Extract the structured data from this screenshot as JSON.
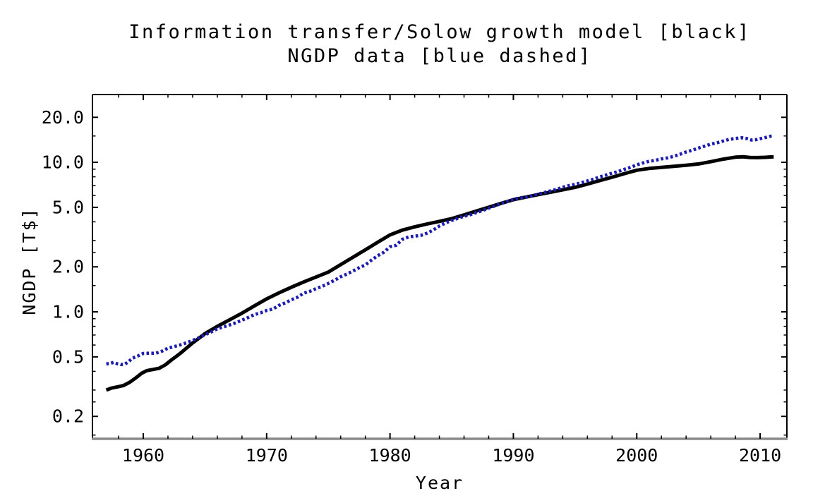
{
  "title": {
    "line1": "Information transfer/Solow growth model [black]",
    "line2": "NGDP data [blue dashed]"
  },
  "chart_data": {
    "type": "line",
    "title": "Information transfer/Solow growth model [black] / NGDP data [blue dashed]",
    "xlabel": "Year",
    "ylabel": "NGDP [T$]",
    "grid": false,
    "legend": "none (described in title)",
    "x_axis": {
      "min": 1955.88,
      "max": 2012.17,
      "major_ticks": [
        1960,
        1970,
        1980,
        1990,
        2000,
        2010
      ],
      "major_tick_labels": [
        "1960",
        "1970",
        "1980",
        "1990",
        "2000",
        "2010"
      ],
      "minor_tick_step_years": 2
    },
    "y_axis": {
      "scale": "log",
      "min": 0.1416,
      "max": 28.4,
      "major_ticks": [
        20,
        10,
        5,
        2,
        1,
        0.5,
        0.2
      ],
      "major_tick_labels": [
        "20.0",
        "10.0",
        "5.0",
        "2.0",
        "1.0",
        "0.5",
        "0.2"
      ],
      "minor_ticks": [
        0.15,
        0.25,
        0.3,
        0.4,
        0.6,
        0.7,
        0.8,
        0.9,
        1.5,
        2.5,
        3,
        4,
        6,
        7,
        8,
        9,
        15
      ]
    },
    "frame_color": "#000000",
    "bottom_axis_color": "#8a8a8a",
    "series": [
      {
        "name": "Information transfer/Solow growth model",
        "color": "#000000",
        "style": "solid",
        "points": [
          [
            1957.0,
            0.3
          ],
          [
            1957.4,
            0.309
          ],
          [
            1957.9,
            0.315
          ],
          [
            1958.4,
            0.322
          ],
          [
            1958.9,
            0.338
          ],
          [
            1959.4,
            0.362
          ],
          [
            1959.9,
            0.39
          ],
          [
            1960.3,
            0.405
          ],
          [
            1960.8,
            0.412
          ],
          [
            1961.3,
            0.42
          ],
          [
            1961.8,
            0.443
          ],
          [
            1962.3,
            0.478
          ],
          [
            1962.7,
            0.505
          ],
          [
            1963.0,
            0.528
          ],
          [
            1963.5,
            0.572
          ],
          [
            1964.0,
            0.62
          ],
          [
            1964.5,
            0.665
          ],
          [
            1965.0,
            0.715
          ],
          [
            1966.0,
            0.8
          ],
          [
            1967.0,
            0.885
          ],
          [
            1968.0,
            0.98
          ],
          [
            1969.0,
            1.095
          ],
          [
            1970.0,
            1.22
          ],
          [
            1971.0,
            1.34
          ],
          [
            1972.0,
            1.46
          ],
          [
            1973.0,
            1.585
          ],
          [
            1974.0,
            1.71
          ],
          [
            1975.0,
            1.845
          ],
          [
            1976.0,
            2.07
          ],
          [
            1977.0,
            2.32
          ],
          [
            1978.0,
            2.6
          ],
          [
            1979.0,
            2.92
          ],
          [
            1980.0,
            3.27
          ],
          [
            1981.0,
            3.52
          ],
          [
            1982.0,
            3.7
          ],
          [
            1983.0,
            3.87
          ],
          [
            1984.0,
            4.03
          ],
          [
            1985.0,
            4.2
          ],
          [
            1986.0,
            4.45
          ],
          [
            1987.0,
            4.72
          ],
          [
            1988.0,
            5.01
          ],
          [
            1989.0,
            5.32
          ],
          [
            1990.0,
            5.62
          ],
          [
            1991.0,
            5.85
          ],
          [
            1992.0,
            6.08
          ],
          [
            1993.0,
            6.31
          ],
          [
            1994.0,
            6.55
          ],
          [
            1995.0,
            6.8
          ],
          [
            1996.0,
            7.15
          ],
          [
            1997.0,
            7.55
          ],
          [
            1998.0,
            7.95
          ],
          [
            1999.0,
            8.4
          ],
          [
            2000.0,
            8.85
          ],
          [
            2001.0,
            9.1
          ],
          [
            2002.0,
            9.25
          ],
          [
            2003.0,
            9.4
          ],
          [
            2004.0,
            9.56
          ],
          [
            2005.0,
            9.75
          ],
          [
            2006.0,
            10.1
          ],
          [
            2007.0,
            10.5
          ],
          [
            2008.0,
            10.82
          ],
          [
            2008.6,
            10.9
          ],
          [
            2009.2,
            10.78
          ],
          [
            2009.8,
            10.75
          ],
          [
            2010.4,
            10.8
          ],
          [
            2011.1,
            10.9
          ]
        ]
      },
      {
        "name": "NGDP data",
        "color": "#1c1cb0",
        "style": "dashed",
        "points": [
          [
            1957.0,
            0.449
          ],
          [
            1957.3,
            0.452
          ],
          [
            1957.6,
            0.459
          ],
          [
            1957.9,
            0.45
          ],
          [
            1958.2,
            0.444
          ],
          [
            1958.5,
            0.447
          ],
          [
            1958.8,
            0.463
          ],
          [
            1959.1,
            0.489
          ],
          [
            1959.5,
            0.504
          ],
          [
            1960.0,
            0.527
          ],
          [
            1960.5,
            0.529
          ],
          [
            1961.0,
            0.528
          ],
          [
            1961.5,
            0.545
          ],
          [
            1962.0,
            0.572
          ],
          [
            1962.5,
            0.586
          ],
          [
            1963.0,
            0.602
          ],
          [
            1963.5,
            0.621
          ],
          [
            1964.0,
            0.644
          ],
          [
            1964.5,
            0.671
          ],
          [
            1965.0,
            0.702
          ],
          [
            1965.5,
            0.733
          ],
          [
            1966.0,
            0.77
          ],
          [
            1966.5,
            0.793
          ],
          [
            1967.0,
            0.817
          ],
          [
            1967.5,
            0.844
          ],
          [
            1968.0,
            0.88
          ],
          [
            1968.5,
            0.916
          ],
          [
            1969.0,
            0.959
          ],
          [
            1969.5,
            0.984
          ],
          [
            1970.0,
            1.021
          ],
          [
            1970.5,
            1.043
          ],
          [
            1971.0,
            1.105
          ],
          [
            1971.5,
            1.147
          ],
          [
            1972.0,
            1.205
          ],
          [
            1972.5,
            1.252
          ],
          [
            1973.0,
            1.335
          ],
          [
            1973.5,
            1.371
          ],
          [
            1974.0,
            1.43
          ],
          [
            1974.5,
            1.481
          ],
          [
            1975.0,
            1.549
          ],
          [
            1975.5,
            1.624
          ],
          [
            1976.0,
            1.717
          ],
          [
            1976.5,
            1.789
          ],
          [
            1977.0,
            1.874
          ],
          [
            1977.5,
            1.974
          ],
          [
            1978.0,
            2.059
          ],
          [
            1978.5,
            2.219
          ],
          [
            1979.0,
            2.376
          ],
          [
            1979.5,
            2.503
          ],
          [
            1980.0,
            2.724
          ],
          [
            1980.5,
            2.788
          ],
          [
            1981.0,
            3.052
          ],
          [
            1981.5,
            3.164
          ],
          [
            1982.0,
            3.21
          ],
          [
            1982.5,
            3.246
          ],
          [
            1983.0,
            3.36
          ],
          [
            1983.5,
            3.525
          ],
          [
            1984.0,
            3.75
          ],
          [
            1984.5,
            3.93
          ],
          [
            1985.0,
            4.084
          ],
          [
            1985.5,
            4.224
          ],
          [
            1986.0,
            4.355
          ],
          [
            1986.5,
            4.459
          ],
          [
            1987.0,
            4.615
          ],
          [
            1987.5,
            4.754
          ],
          [
            1988.0,
            4.944
          ],
          [
            1988.5,
            5.106
          ],
          [
            1989.0,
            5.3
          ],
          [
            1989.5,
            5.467
          ],
          [
            1990.0,
            5.644
          ],
          [
            1990.5,
            5.787
          ],
          [
            1991.0,
            5.841
          ],
          [
            1991.5,
            5.979
          ],
          [
            1992.0,
            6.129
          ],
          [
            1992.5,
            6.274
          ],
          [
            1993.0,
            6.442
          ],
          [
            1993.5,
            6.596
          ],
          [
            1994.0,
            6.818
          ],
          [
            1994.5,
            6.99
          ],
          [
            1995.0,
            7.13
          ],
          [
            1995.5,
            7.294
          ],
          [
            1996.0,
            7.509
          ],
          [
            1996.5,
            7.717
          ],
          [
            1997.0,
            7.988
          ],
          [
            1997.5,
            8.21
          ],
          [
            1998.0,
            8.463
          ],
          [
            1998.5,
            8.684
          ],
          [
            1999.0,
            8.979
          ],
          [
            1999.5,
            9.255
          ],
          [
            2000.0,
            9.629
          ],
          [
            2000.5,
            9.904
          ],
          [
            2001.0,
            10.165
          ],
          [
            2001.5,
            10.305
          ],
          [
            2002.0,
            10.545
          ],
          [
            2002.5,
            10.702
          ],
          [
            2003.0,
            10.96
          ],
          [
            2003.5,
            11.312
          ],
          [
            2004.0,
            11.713
          ],
          [
            2004.5,
            12.042
          ],
          [
            2005.0,
            12.455
          ],
          [
            2005.5,
            12.823
          ],
          [
            2006.0,
            13.234
          ],
          [
            2006.5,
            13.512
          ],
          [
            2007.0,
            13.879
          ],
          [
            2007.5,
            14.243
          ],
          [
            2008.0,
            14.431
          ],
          [
            2008.5,
            14.602
          ],
          [
            2008.9,
            14.43
          ],
          [
            2009.3,
            14.09
          ],
          [
            2009.7,
            14.18
          ],
          [
            2010.1,
            14.45
          ],
          [
            2010.5,
            14.71
          ],
          [
            2010.9,
            14.99
          ],
          [
            2011.1,
            15.1
          ]
        ]
      }
    ]
  }
}
